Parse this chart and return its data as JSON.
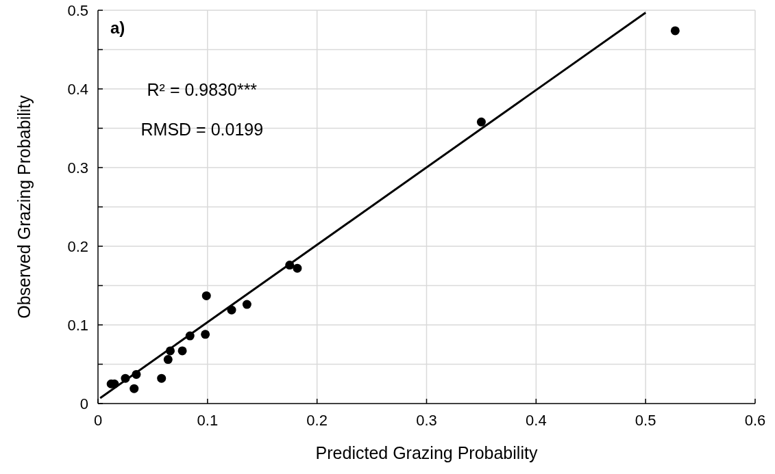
{
  "chart_data": {
    "type": "scatter",
    "xlabel": "Predicted Grazing Probability",
    "ylabel": "Observed Grazing Probability",
    "xlim": [
      0,
      0.6
    ],
    "xticks": [
      0,
      0.1,
      0.2,
      0.3,
      0.4,
      0.5,
      0.6
    ],
    "ylim": [
      0,
      0.5
    ],
    "yticks": [
      0,
      {
        "value": 0.05,
        "label": null
      },
      0.1,
      {
        "value": 0.15,
        "label": null
      },
      0.2,
      {
        "value": 0.25,
        "label": null
      },
      0.3,
      {
        "value": 0.35,
        "label": null
      },
      0.4,
      {
        "value": 0.45,
        "label": null
      },
      0.5
    ],
    "grid": true,
    "annotations": [
      "a)",
      "R² = 0.9830***",
      "RMSD = 0.0199"
    ],
    "series": [
      {
        "marker": "circle",
        "color": "#000000",
        "x": [
          0.012,
          0.015,
          0.025,
          0.035,
          0.033,
          0.058,
          0.064,
          0.066,
          0.077,
          0.084,
          0.098,
          0.099,
          0.122,
          0.136,
          0.175,
          0.182,
          0.35,
          0.527
        ],
        "values": [
          0.025,
          0.025,
          0.032,
          0.037,
          0.019,
          0.032,
          0.056,
          0.067,
          0.067,
          0.086,
          0.088,
          0.137,
          0.119,
          0.126,
          0.176,
          0.172,
          0.358,
          0.474
        ]
      },
      {
        "type": "line",
        "marker": "none",
        "line_style": "solid",
        "color": "#000000",
        "x": [
          0.002,
          0.5
        ],
        "values": [
          0.007,
          0.497
        ]
      }
    ]
  }
}
